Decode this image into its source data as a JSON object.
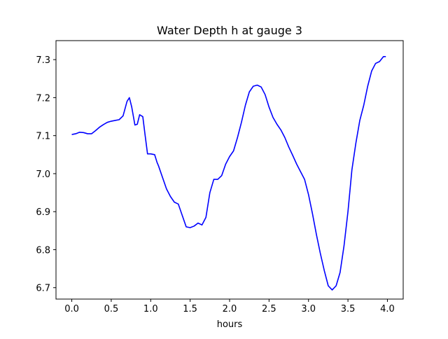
{
  "chart_data": {
    "type": "line",
    "title": "Water Depth h at gauge 3",
    "xlabel": "hours",
    "ylabel": "",
    "xlim": [
      -0.2,
      4.2
    ],
    "ylim": [
      6.67,
      7.35
    ],
    "xticks": [
      0.0,
      0.5,
      1.0,
      1.5,
      2.0,
      2.5,
      3.0,
      3.5,
      4.0
    ],
    "xtick_labels": [
      "0.0",
      "0.5",
      "1.0",
      "1.5",
      "2.0",
      "2.5",
      "3.0",
      "3.5",
      "4.0"
    ],
    "yticks": [
      6.7,
      6.8,
      6.9,
      7.0,
      7.1,
      7.2,
      7.3
    ],
    "ytick_labels": [
      "6.7",
      "6.8",
      "6.9",
      "7.0",
      "7.1",
      "7.2",
      "7.3"
    ],
    "grid": false,
    "legend": "none",
    "series": [
      {
        "color": "#0000ff",
        "x": [
          0.0,
          0.05,
          0.1,
          0.15,
          0.2,
          0.25,
          0.3,
          0.35,
          0.4,
          0.45,
          0.5,
          0.55,
          0.6,
          0.65,
          0.7,
          0.73,
          0.76,
          0.8,
          0.83,
          0.86,
          0.9,
          0.93,
          0.96,
          1.0,
          1.05,
          1.08,
          1.1,
          1.15,
          1.2,
          1.25,
          1.3,
          1.35,
          1.4,
          1.45,
          1.5,
          1.55,
          1.6,
          1.65,
          1.7,
          1.75,
          1.8,
          1.85,
          1.9,
          1.95,
          2.0,
          2.05,
          2.1,
          2.15,
          2.2,
          2.25,
          2.3,
          2.35,
          2.4,
          2.45,
          2.5,
          2.55,
          2.6,
          2.65,
          2.7,
          2.75,
          2.8,
          2.85,
          2.9,
          2.95,
          3.0,
          3.05,
          3.1,
          3.15,
          3.2,
          3.25,
          3.3,
          3.35,
          3.4,
          3.45,
          3.5,
          3.55,
          3.6,
          3.65,
          3.7,
          3.75,
          3.8,
          3.85,
          3.9,
          3.95,
          3.98
        ],
        "y": [
          7.103,
          7.105,
          7.109,
          7.108,
          7.105,
          7.105,
          7.113,
          7.122,
          7.129,
          7.135,
          7.138,
          7.14,
          7.142,
          7.152,
          7.19,
          7.2,
          7.175,
          7.128,
          7.13,
          7.155,
          7.15,
          7.1,
          7.052,
          7.052,
          7.05,
          7.03,
          7.02,
          6.99,
          6.96,
          6.94,
          6.925,
          6.92,
          6.89,
          6.86,
          6.858,
          6.862,
          6.87,
          6.865,
          6.885,
          6.95,
          6.985,
          6.985,
          6.995,
          7.025,
          7.045,
          7.06,
          7.095,
          7.135,
          7.18,
          7.215,
          7.23,
          7.233,
          7.228,
          7.208,
          7.175,
          7.148,
          7.13,
          7.115,
          7.095,
          7.07,
          7.048,
          7.025,
          7.005,
          6.985,
          6.945,
          6.895,
          6.84,
          6.79,
          6.745,
          6.705,
          6.694,
          6.705,
          6.74,
          6.81,
          6.9,
          7.01,
          7.08,
          7.14,
          7.18,
          7.23,
          7.27,
          7.29,
          7.295,
          7.308,
          7.308
        ]
      }
    ]
  }
}
